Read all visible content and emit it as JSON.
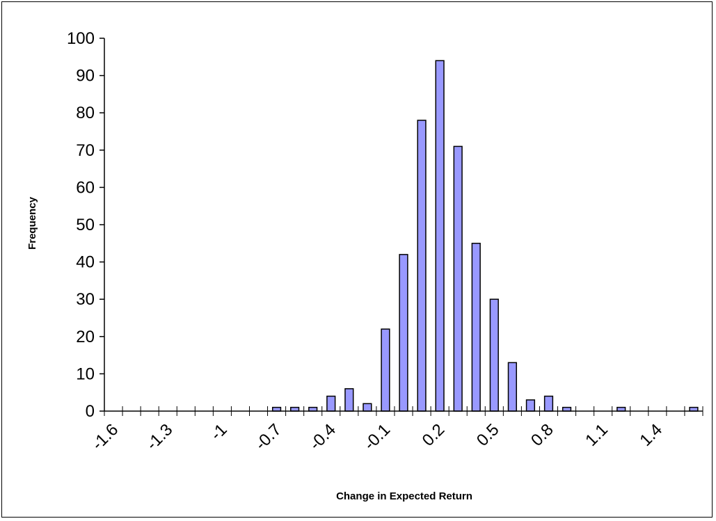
{
  "chart_data": {
    "type": "bar",
    "title": "",
    "xlabel": "Change in Expected Return",
    "ylabel": "Frequency",
    "ylim": [
      0,
      100
    ],
    "yticks": [
      0,
      10,
      20,
      30,
      40,
      50,
      60,
      70,
      80,
      90,
      100
    ],
    "xtick_labels": [
      "-1.6",
      "-1.3",
      "-1",
      "-0.7",
      "-0.4",
      "-0.1",
      "0.2",
      "0.5",
      "0.8",
      "1.1",
      "1.4"
    ],
    "categories": [
      -1.6,
      -1.5,
      -1.4,
      -1.3,
      -1.2,
      -1.1,
      -1.0,
      -0.9,
      -0.8,
      -0.7,
      -0.6,
      -0.5,
      -0.4,
      -0.3,
      -0.2,
      -0.1,
      0.0,
      0.1,
      0.2,
      0.3,
      0.4,
      0.5,
      0.6,
      0.7,
      0.8,
      0.9,
      1.0,
      1.1,
      1.2,
      1.3,
      1.4,
      1.5,
      1.6
    ],
    "values": [
      0,
      0,
      0,
      0,
      0,
      0,
      0,
      0,
      0,
      1,
      1,
      1,
      4,
      6,
      2,
      22,
      42,
      78,
      94,
      71,
      45,
      30,
      13,
      3,
      4,
      1,
      0,
      0,
      1,
      0,
      0,
      0,
      1
    ],
    "grid": false,
    "legend": "none",
    "bar_color": "#9999ff",
    "bar_edge_color": "#000000"
  }
}
